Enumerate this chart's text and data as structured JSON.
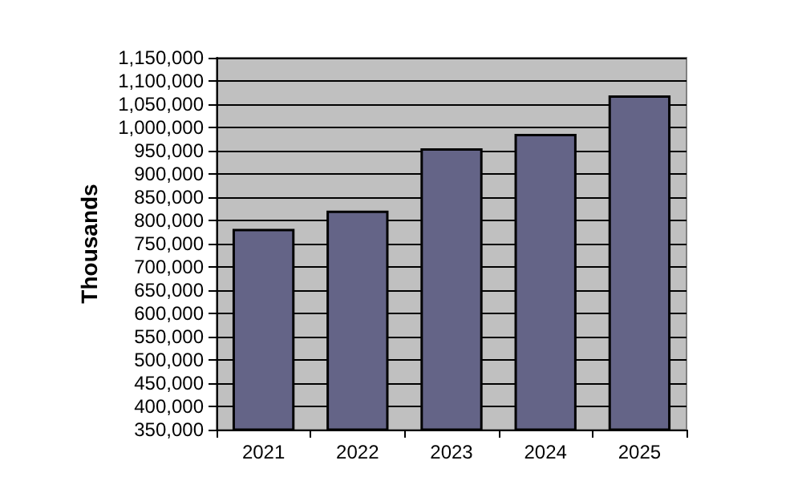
{
  "chart_data": {
    "type": "bar",
    "ylabel": "Thousands",
    "categories": [
      "2021",
      "2022",
      "2023",
      "2024",
      "2025"
    ],
    "values": [
      782000,
      821000,
      955000,
      986000,
      1069000
    ],
    "color": "#646487",
    "ylim": [
      350000,
      1150000
    ],
    "yticks": [
      {
        "value": 350000,
        "label": "350,000"
      },
      {
        "value": 400000,
        "label": "400,000"
      },
      {
        "value": 450000,
        "label": "450,000"
      },
      {
        "value": 500000,
        "label": "500,000"
      },
      {
        "value": 550000,
        "label": "550,000"
      },
      {
        "value": 600000,
        "label": "600,000"
      },
      {
        "value": 650000,
        "label": "650,000"
      },
      {
        "value": 700000,
        "label": "700,000"
      },
      {
        "value": 750000,
        "label": "750,000"
      },
      {
        "value": 800000,
        "label": "800,000"
      },
      {
        "value": 850000,
        "label": "850,000"
      },
      {
        "value": 900000,
        "label": "900,000"
      },
      {
        "value": 950000,
        "label": "950,000"
      },
      {
        "value": 1000000,
        "label": "1,000,000"
      },
      {
        "value": 1050000,
        "label": "1,050,000"
      },
      {
        "value": 1100000,
        "label": "1,100,000"
      },
      {
        "value": 1150000,
        "label": "1,150,000"
      }
    ],
    "grid": "y"
  }
}
